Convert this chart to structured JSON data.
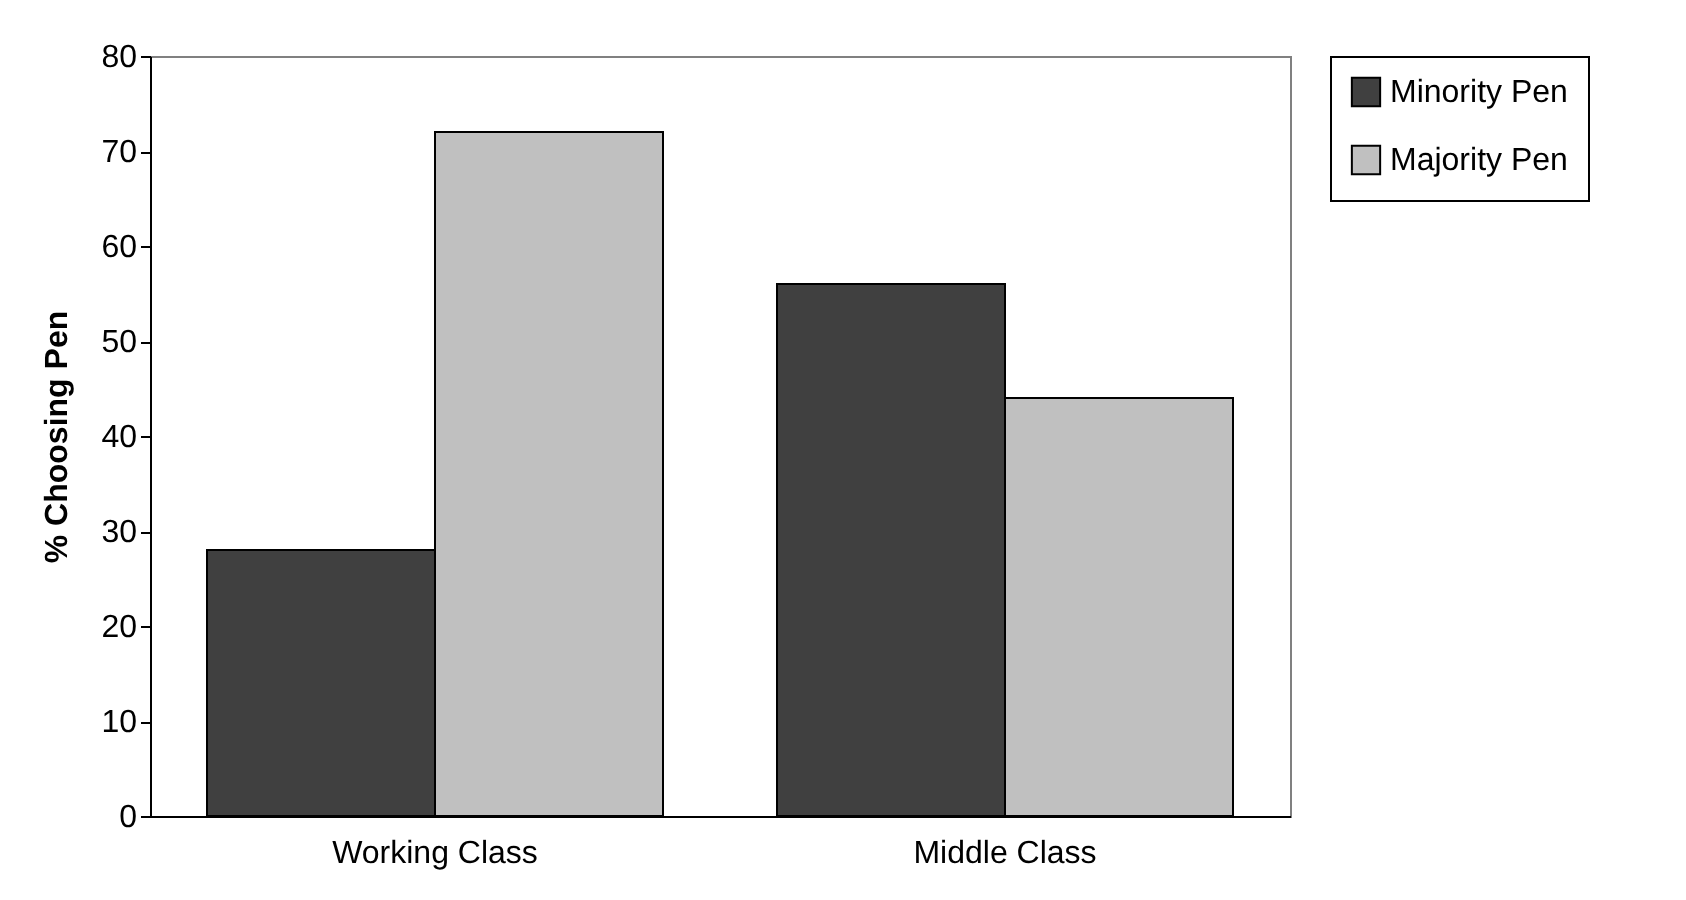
{
  "chart_data": {
    "type": "bar",
    "ylabel": "% Choosing Pen",
    "categories": [
      "Working Class",
      "Middle Class"
    ],
    "series": [
      {
        "name": "Minority Pen",
        "color": "#404040",
        "values": [
          28,
          56
        ]
      },
      {
        "name": "Majority Pen",
        "color": "#c0c0c0",
        "values": [
          72,
          44
        ]
      }
    ],
    "ylim": [
      0,
      80
    ],
    "yticks": [
      0,
      10,
      20,
      30,
      40,
      50,
      60,
      70,
      80
    ],
    "legend": "right",
    "grid": false
  }
}
